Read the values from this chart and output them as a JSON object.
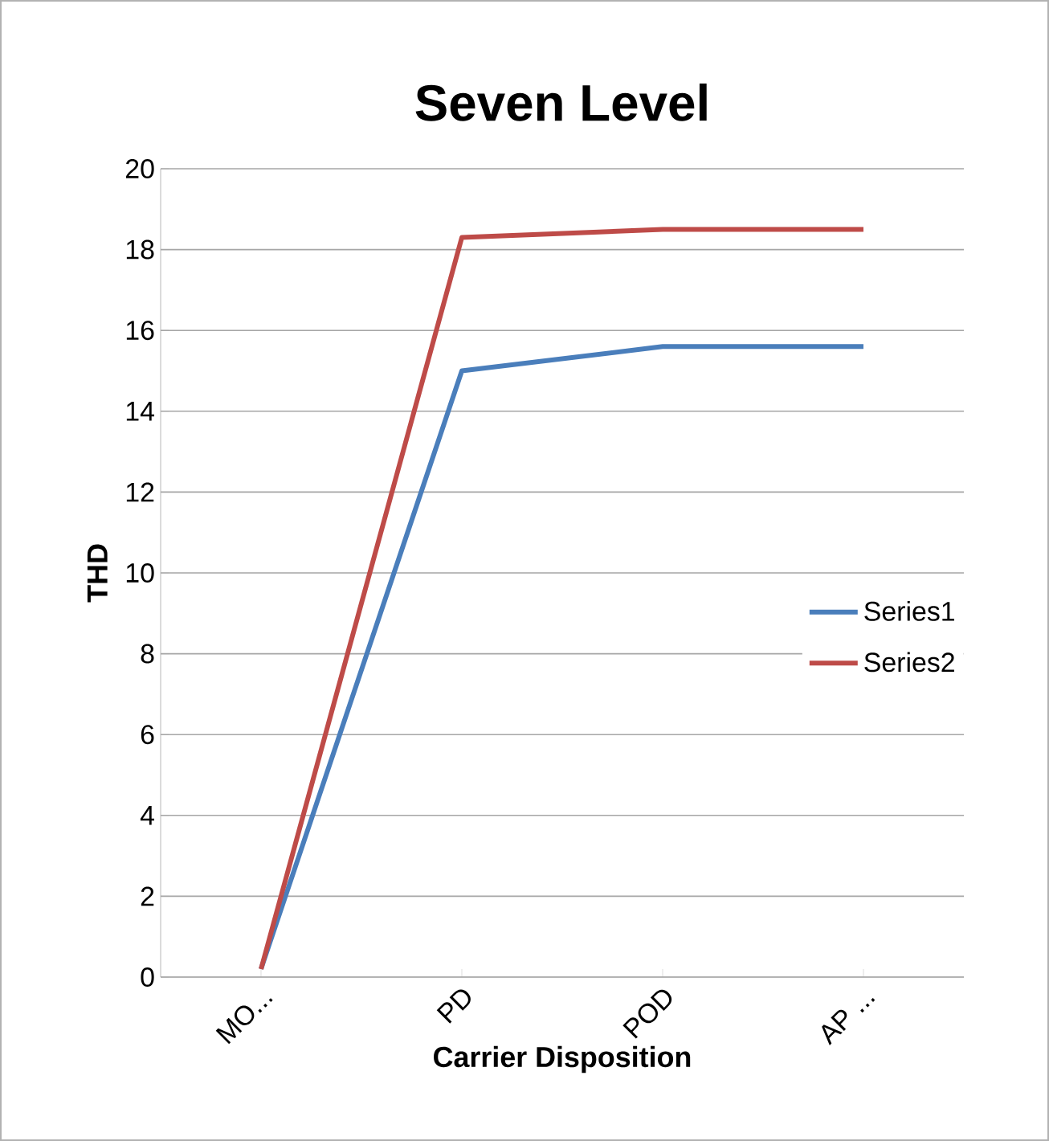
{
  "chart_data": {
    "type": "line",
    "title": "Seven Level",
    "xlabel": "Carrier Disposition",
    "ylabel": "THD",
    "categories": [
      "MO...",
      "PD",
      "POD",
      "AP ..."
    ],
    "series": [
      {
        "name": "Series1",
        "color": "#4a7ebb",
        "values": [
          0.2,
          15.0,
          15.6,
          15.6
        ]
      },
      {
        "name": "Series2",
        "color": "#be4b48",
        "values": [
          0.2,
          18.3,
          18.5,
          18.5
        ]
      }
    ],
    "ylim": [
      0,
      20
    ],
    "yticks": [
      0,
      2,
      4,
      6,
      8,
      10,
      12,
      14,
      16,
      18,
      20
    ],
    "grid": "y",
    "legend": "right",
    "marker": "none",
    "line_style": "solid"
  }
}
